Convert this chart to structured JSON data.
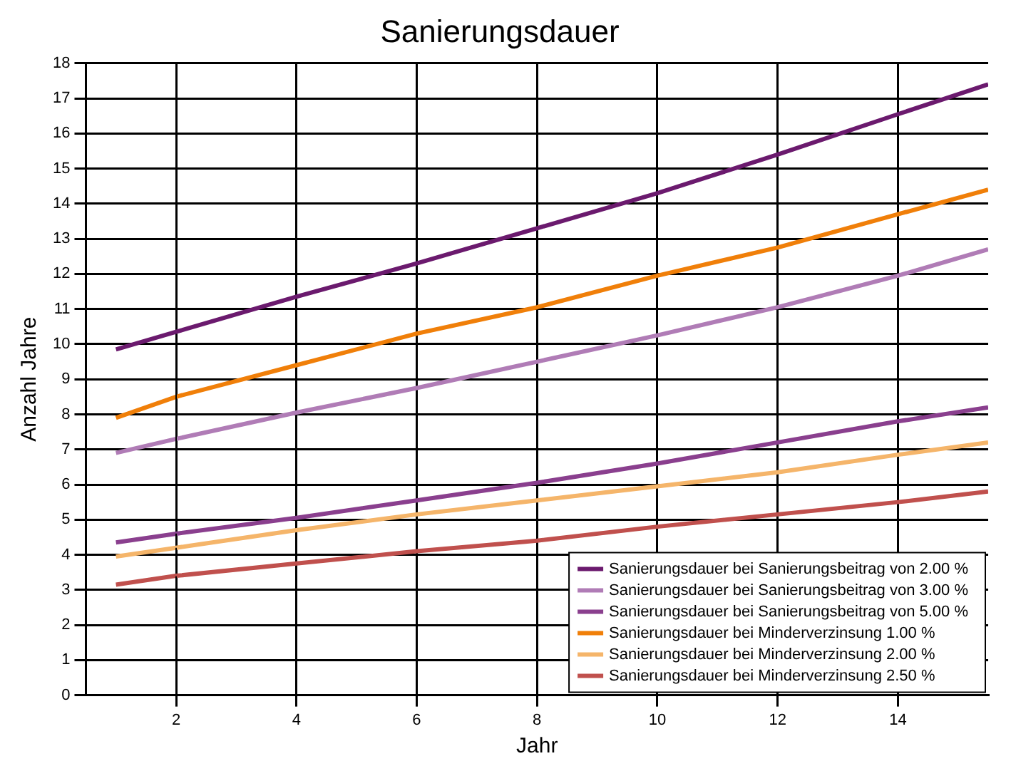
{
  "chart_data": {
    "type": "line",
    "title": "Sanierungsdauer",
    "xlabel": "Jahr",
    "ylabel": "Anzahl Jahre",
    "x": [
      1,
      2,
      4,
      6,
      8,
      10,
      12,
      14,
      15.5
    ],
    "series": [
      {
        "name": "Sanierungsdauer bei Sanierungsbeitrag von 2.00 %",
        "color": "#6b1a6e",
        "values": [
          9.85,
          10.35,
          11.35,
          12.3,
          13.3,
          14.3,
          15.4,
          16.55,
          17.4
        ]
      },
      {
        "name": "Sanierungsdauer bei Sanierungsbeitrag von 3.00 %",
        "color": "#b07cb6",
        "values": [
          6.9,
          7.3,
          8.05,
          8.75,
          9.5,
          10.25,
          11.05,
          11.95,
          12.7
        ]
      },
      {
        "name": "Sanierungsdauer bei Sanierungsbeitrag von 5.00 %",
        "color": "#8a3f8e",
        "values": [
          4.35,
          4.6,
          5.05,
          5.55,
          6.05,
          6.6,
          7.2,
          7.8,
          8.2
        ]
      },
      {
        "name": "Sanierungsdauer bei Minderverzinsung 1.00 %",
        "color": "#f07f09",
        "values": [
          7.9,
          8.5,
          9.4,
          10.3,
          11.05,
          11.95,
          12.75,
          13.7,
          14.4
        ]
      },
      {
        "name": "Sanierungsdauer bei Minderverzinsung 2.00 %",
        "color": "#f5b56a",
        "values": [
          3.95,
          4.2,
          4.7,
          5.15,
          5.55,
          5.95,
          6.35,
          6.85,
          7.2
        ]
      },
      {
        "name": "Sanierungsdauer bei Minderverzinsung 2.50 %",
        "color": "#c0504d",
        "values": [
          3.15,
          3.4,
          3.75,
          4.1,
          4.4,
          4.8,
          5.15,
          5.5,
          5.8
        ]
      }
    ],
    "xlim": [
      0.5,
      15.5
    ],
    "xticks": [
      2,
      4,
      6,
      8,
      10,
      12,
      14
    ],
    "ylim": [
      0,
      18
    ],
    "yticks": [
      0,
      1,
      2,
      3,
      4,
      5,
      6,
      7,
      8,
      9,
      10,
      11,
      12,
      13,
      14,
      15,
      16,
      17,
      18
    ],
    "ref_lines": [
      {
        "axis": "x",
        "value": 2,
        "line_style": "dashed",
        "color": "#000000"
      }
    ],
    "grid": true,
    "legend": "bottom right",
    "marker": "none",
    "line_style": "solid"
  }
}
